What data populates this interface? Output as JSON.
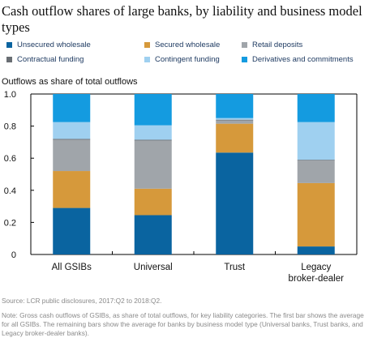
{
  "title": "Cash outflow shares of large banks, by liability and business model types",
  "y_axis_title": "Outflows as share of total outflows",
  "legend": [
    {
      "label": "Unsecured wholesale",
      "color": "#0a64a0"
    },
    {
      "label": "Secured wholesale",
      "color": "#d6993b"
    },
    {
      "label": "Retail deposits",
      "color": "#a0a5aa"
    },
    {
      "label": "Contractual funding",
      "color": "#696e73"
    },
    {
      "label": "Contingent funding",
      "color": "#9fd0f0"
    },
    {
      "label": "Derivatives and commitments",
      "color": "#149be0"
    }
  ],
  "chart_data": {
    "type": "bar",
    "stacked": true,
    "categories": [
      "All GSIBs",
      "Universal",
      "Trust",
      "Legacy broker-dealer"
    ],
    "ylim": [
      0,
      1.0
    ],
    "yticks": [
      "0",
      "0.2",
      "0.4",
      "0.6",
      "0.8",
      "1.0"
    ],
    "ylabel": "Outflows as share of total outflows",
    "series": [
      {
        "name": "Unsecured wholesale",
        "values": [
          0.29,
          0.245,
          0.635,
          0.05
        ]
      },
      {
        "name": "Secured wholesale",
        "values": [
          0.23,
          0.165,
          0.18,
          0.395
        ]
      },
      {
        "name": "Retail deposits",
        "values": [
          0.195,
          0.3,
          0.02,
          0.14
        ]
      },
      {
        "name": "Contractual funding",
        "values": [
          0.005,
          0.005,
          0.005,
          0.005
        ]
      },
      {
        "name": "Contingent funding",
        "values": [
          0.105,
          0.09,
          0.01,
          0.235
        ]
      },
      {
        "name": "Derivatives and commitments",
        "values": [
          0.175,
          0.195,
          0.15,
          0.175
        ]
      }
    ]
  },
  "source": "Source: LCR public disclosures, 2017:Q2 to 2018:Q2.",
  "note": "Note: Gross cash outflows of GSIBs, as share of total outflows, for key liability categories. The first bar shows the average for all GSIBs. The remaining bars show the average for banks by business model type (Universal banks, Trust banks, and Legacy broker-dealer banks)."
}
